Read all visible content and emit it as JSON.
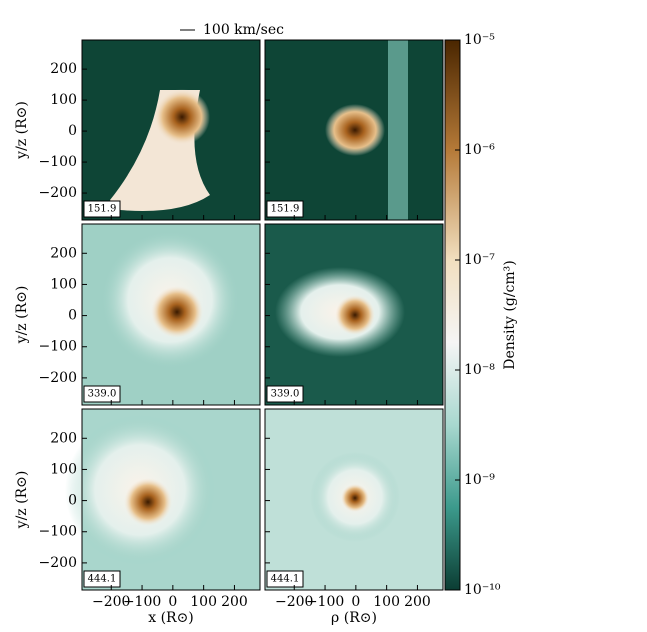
{
  "chart_data": {
    "type": "heatmap",
    "arrow_label": "100 km/sec",
    "xlabels": [
      "x (R⊙)",
      "ρ (R⊙)"
    ],
    "ylabel": "y/z (R⊙)",
    "times": [
      "151.9",
      "339.0",
      "444.1"
    ],
    "xlim": [
      -295,
      283
    ],
    "ylim": [
      -287,
      294
    ],
    "xticks": [
      {
        "value": -200,
        "label": "−200"
      },
      {
        "value": -100,
        "label": "−100"
      },
      0,
      100,
      200
    ],
    "yticks": [
      {
        "value": -200,
        "label": "−200"
      },
      {
        "value": -100,
        "label": "−100"
      },
      0,
      100,
      200
    ],
    "colorbar": {
      "label": "Density (g/cm³)",
      "scale": "log",
      "clim": [
        1e-10,
        1e-05
      ],
      "ticks": [
        {
          "value": 1e-05,
          "label": "10⁻⁵"
        },
        {
          "value": 1e-06,
          "label": "10⁻⁶"
        },
        {
          "value": 1e-07,
          "label": "10⁻⁷"
        },
        {
          "value": 1e-08,
          "label": "10⁻⁸"
        },
        {
          "value": 1e-09,
          "label": "10⁻⁹"
        },
        {
          "value": 1e-10,
          "label": "10⁻¹⁰"
        }
      ]
    }
  }
}
